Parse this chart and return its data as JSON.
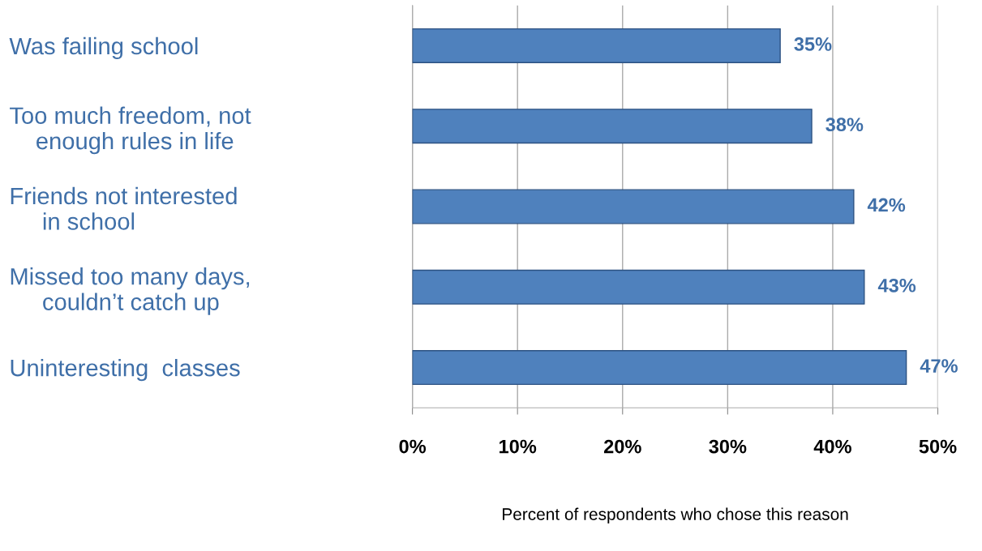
{
  "chart_data": {
    "type": "bar",
    "orientation": "horizontal",
    "xlabel": "Percent of respondents who chose this reason",
    "categories": [
      "Was failing school",
      "Too much freedom, not\n    enough rules in life",
      "Friends not interested\n     in school",
      "Missed too many days,\n     couldn’t catch up",
      "Uninteresting  classes"
    ],
    "values": [
      35,
      38,
      42,
      43,
      47
    ],
    "color": "#4f81bd",
    "value_labels": [
      "35%",
      "38%",
      "42%",
      "43%",
      "47%"
    ],
    "xlim": [
      0,
      50
    ],
    "xticks": [
      {
        "value": 0,
        "label": "0%"
      },
      {
        "value": 10,
        "label": "10%"
      },
      {
        "value": 20,
        "label": "20%"
      },
      {
        "value": 30,
        "label": "30%"
      },
      {
        "value": 40,
        "label": "40%"
      },
      {
        "value": 50,
        "label": "50%"
      }
    ],
    "grid": "x"
  }
}
